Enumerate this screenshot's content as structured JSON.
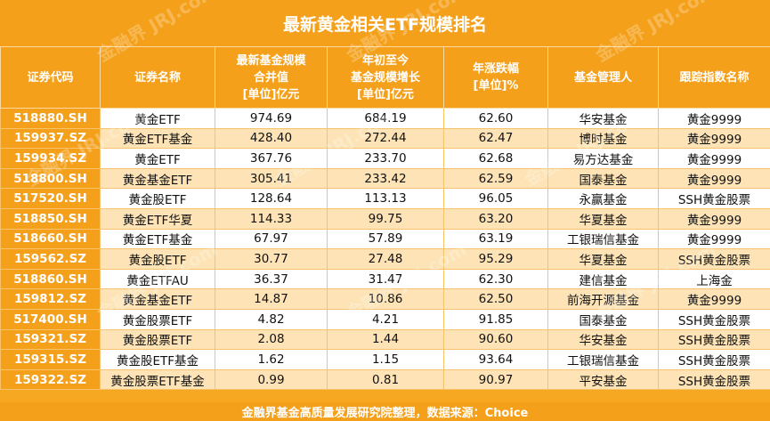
{
  "title": "最新黄金相关ETF规模排名",
  "headers": [
    [
      "证券代码"
    ],
    [
      "证券名称"
    ],
    [
      "最新基金规模",
      "合并值",
      "[单位]亿元"
    ],
    [
      "年初至今",
      "基金规模增长",
      "[单位]亿元"
    ],
    [
      "年涨跌幅",
      "[单位]%"
    ],
    [
      "基金管理人"
    ],
    [
      "跟踪指数名称"
    ]
  ],
  "rows": [
    [
      "518880.SH",
      "黄金ETF",
      "974.69",
      "684.19",
      "62.60",
      "华安基金",
      "黄金9999"
    ],
    [
      "159937.SZ",
      "黄金ETF基金",
      "428.40",
      "272.44",
      "62.47",
      "博时基金",
      "黄金9999"
    ],
    [
      "159934.SZ",
      "黄金ETF",
      "367.76",
      "233.70",
      "62.68",
      "易方达基金",
      "黄金9999"
    ],
    [
      "518800.SH",
      "黄金基金ETF",
      "305.41",
      "233.42",
      "62.59",
      "国泰基金",
      "黄金9999"
    ],
    [
      "517520.SH",
      "黄金股ETF",
      "128.64",
      "113.13",
      "96.05",
      "永赢基金",
      "SSH黄金股票"
    ],
    [
      "518850.SH",
      "黄金ETF华夏",
      "114.33",
      "99.75",
      "63.20",
      "华夏基金",
      "黄金9999"
    ],
    [
      "518660.SH",
      "黄金ETF基金",
      "67.97",
      "57.89",
      "63.19",
      "工银瑞信基金",
      "黄金9999"
    ],
    [
      "159562.SZ",
      "黄金股ETF",
      "30.77",
      "27.48",
      "95.29",
      "华夏基金",
      "SSH黄金股票"
    ],
    [
      "518860.SH",
      "黄金ETFAU",
      "36.37",
      "31.47",
      "62.30",
      "建信基金",
      "上海金"
    ],
    [
      "159812.SZ",
      "黄金基金ETF",
      "14.87",
      "10.86",
      "62.50",
      "前海开源基金",
      "黄金9999"
    ],
    [
      "517400.SH",
      "黄金股票ETF",
      "4.82",
      "4.21",
      "91.85",
      "国泰基金",
      "SSH黄金股票"
    ],
    [
      "159321.SZ",
      "黄金股票ETF",
      "2.08",
      "1.44",
      "90.60",
      "华安基金",
      "SSH黄金股票"
    ],
    [
      "159315.SZ",
      "黄金股ETF基金",
      "1.62",
      "1.15",
      "93.64",
      "工银瑞信基金",
      "SSH黄金股票"
    ],
    [
      "159322.SZ",
      "黄金股票ETF基金",
      "0.99",
      "0.81",
      "90.97",
      "平安基金",
      "SSH黄金股票"
    ]
  ],
  "footer": "金融界基金高质量发展研究院整理，数据来源：Choice",
  "watermark": "金融界 JRJ.com",
  "colors": {
    "header_orange": "#f5a01a",
    "stripe_light": "#fde3b5",
    "row_white": "#ffffff"
  }
}
